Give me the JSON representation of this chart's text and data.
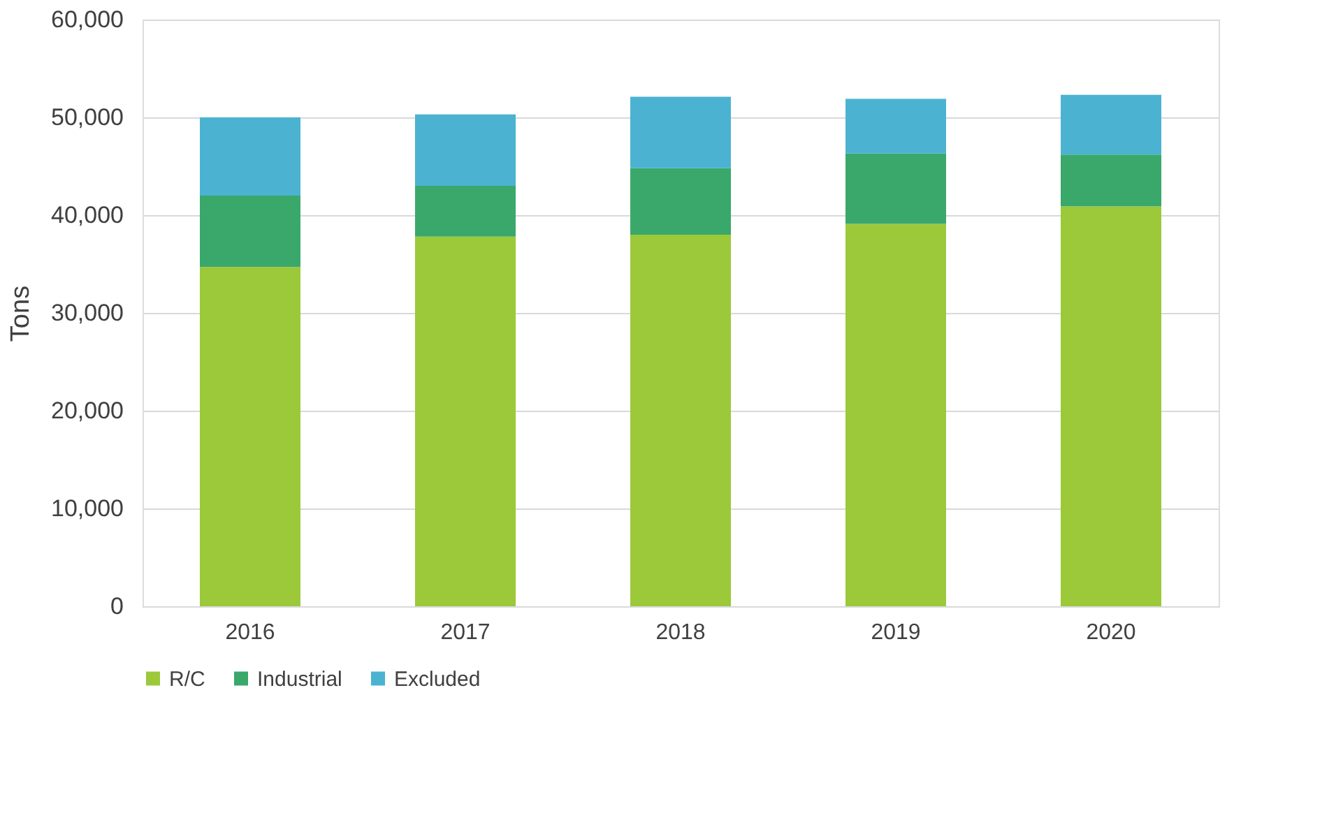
{
  "chart_data": {
    "type": "bar",
    "stacked": true,
    "ylabel": "Tons",
    "categories": [
      "2016",
      "2017",
      "2018",
      "2019",
      "2020"
    ],
    "series": [
      {
        "name": "R/C",
        "color": "#9bc93a",
        "values": [
          34700,
          37800,
          38000,
          39100,
          40900
        ]
      },
      {
        "name": "Industrial",
        "color": "#3aa86a",
        "values": [
          7300,
          5200,
          6800,
          7200,
          5300
        ]
      },
      {
        "name": "Excluded",
        "color": "#4bb3d1",
        "values": [
          8000,
          7300,
          7300,
          5600,
          6100
        ]
      }
    ],
    "ylim": [
      0,
      60000
    ],
    "yticks": [
      {
        "value": 0,
        "label": "0"
      },
      {
        "value": 10000,
        "label": "10,000"
      },
      {
        "value": 20000,
        "label": "20,000"
      },
      {
        "value": 30000,
        "label": "30,000"
      },
      {
        "value": 40000,
        "label": "40,000"
      },
      {
        "value": 50000,
        "label": "50,000"
      },
      {
        "value": 60000,
        "label": "60,000"
      }
    ],
    "grid": "y",
    "legend": "bottom"
  }
}
